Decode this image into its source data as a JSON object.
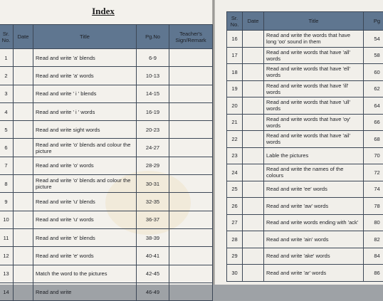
{
  "index_title": "Index",
  "left_headers": {
    "sr_no": "Sr. No.",
    "date": "Date",
    "title": "Title",
    "pg_no": "Pg.No",
    "remark": "Teacher's Sign/Remark"
  },
  "right_headers": {
    "sr_no": "Sr. No.",
    "date": "Date",
    "title": "Title",
    "pg_no": "Pg"
  },
  "left_rows": [
    {
      "sr": "1",
      "title": "Read and write 'a' blends",
      "pg": "6-9"
    },
    {
      "sr": "2",
      "title": "Read and write 'a' words",
      "pg": "10-13"
    },
    {
      "sr": "3",
      "title": "Read and write ' i ' blends",
      "pg": "14-15"
    },
    {
      "sr": "4",
      "title": "Read and write ' i ' words",
      "pg": "16-19"
    },
    {
      "sr": "5",
      "title": "Read and write sight words",
      "pg": "20-23"
    },
    {
      "sr": "6",
      "title": "Read and write 'o' blends and colour the picture",
      "pg": "24-27"
    },
    {
      "sr": "7",
      "title": "Read and write 'o' words",
      "pg": "28-29"
    },
    {
      "sr": "8",
      "title": "Read and write 'o' blends and colour the picture",
      "pg": "30-31"
    },
    {
      "sr": "9",
      "title": "Read and write 'u' blends",
      "pg": "32-35"
    },
    {
      "sr": "10",
      "title": "Read and write 'u' words",
      "pg": "36-37"
    },
    {
      "sr": "11",
      "title": "Read and write 'e' blends",
      "pg": "38-39"
    },
    {
      "sr": "12",
      "title": "Read and write 'e' words",
      "pg": "40-41"
    },
    {
      "sr": "13",
      "title": "Match the word to the pictures",
      "pg": "42-45"
    },
    {
      "sr": "14",
      "title": "Read and write",
      "pg": "46-49"
    }
  ],
  "right_rows": [
    {
      "sr": "16",
      "title": "Read and write the words that have long 'oo' sound in them",
      "pg": "54"
    },
    {
      "sr": "17",
      "title": "Read and write words that have 'all' words",
      "pg": "58"
    },
    {
      "sr": "18",
      "title": "Read and write words that have 'ell' words",
      "pg": "60"
    },
    {
      "sr": "19",
      "title": "Read and write words that have 'ill' words",
      "pg": "62"
    },
    {
      "sr": "20",
      "title": "Read and write words that have 'ull' words",
      "pg": "64"
    },
    {
      "sr": "21",
      "title": "Read and write words that have 'oy' words",
      "pg": "66"
    },
    {
      "sr": "22",
      "title": "Read and write words that have 'ail' words",
      "pg": "68"
    },
    {
      "sr": "23",
      "title": "Lable the pictures",
      "pg": "70"
    },
    {
      "sr": "24",
      "title": "Read and write the names of the colours",
      "pg": "72"
    },
    {
      "sr": "25",
      "title": "Read and write 'ee' words",
      "pg": "74"
    },
    {
      "sr": "26",
      "title": "Read and write 'aw' words",
      "pg": "78"
    },
    {
      "sr": "27",
      "title": "Read and write words ending with 'ack'",
      "pg": "80"
    },
    {
      "sr": "28",
      "title": "Read and write 'ain' words",
      "pg": "82"
    },
    {
      "sr": "29",
      "title": "Read and write 'ake' words",
      "pg": "84"
    },
    {
      "sr": "30",
      "title": "Read and write 'ar' words",
      "pg": "86"
    }
  ]
}
